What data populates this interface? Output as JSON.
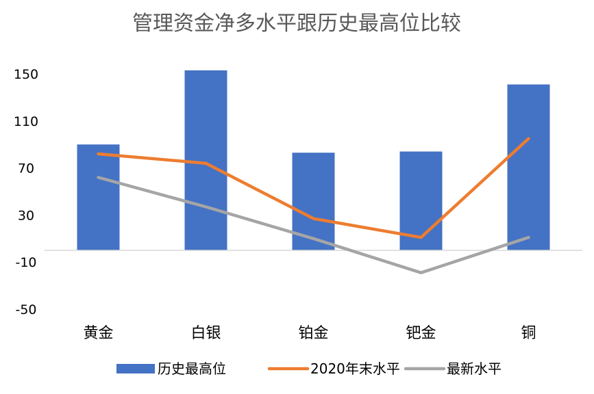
{
  "chart_data": {
    "type": "bar",
    "title": "管理资金净多水平跟历史最高位比较",
    "categories": [
      "黄金",
      "白银",
      "铂金",
      "钯金",
      "铜"
    ],
    "ylim": [
      -50,
      150
    ],
    "yticks": [
      150,
      110,
      70,
      30,
      -10,
      -50
    ],
    "grid": false,
    "legend_position": "bottom",
    "series": [
      {
        "name": "历史最高位",
        "type": "bar",
        "color": "#4472C4",
        "values": [
          90,
          153,
          83,
          84,
          141
        ]
      },
      {
        "name": "2020年末水平",
        "type": "line",
        "color": "#ED7D31",
        "values": [
          82,
          74,
          27,
          11,
          95
        ]
      },
      {
        "name": "最新水平",
        "type": "line",
        "color": "#A5A5A5",
        "values": [
          62,
          37,
          10,
          -19,
          11
        ]
      }
    ]
  }
}
